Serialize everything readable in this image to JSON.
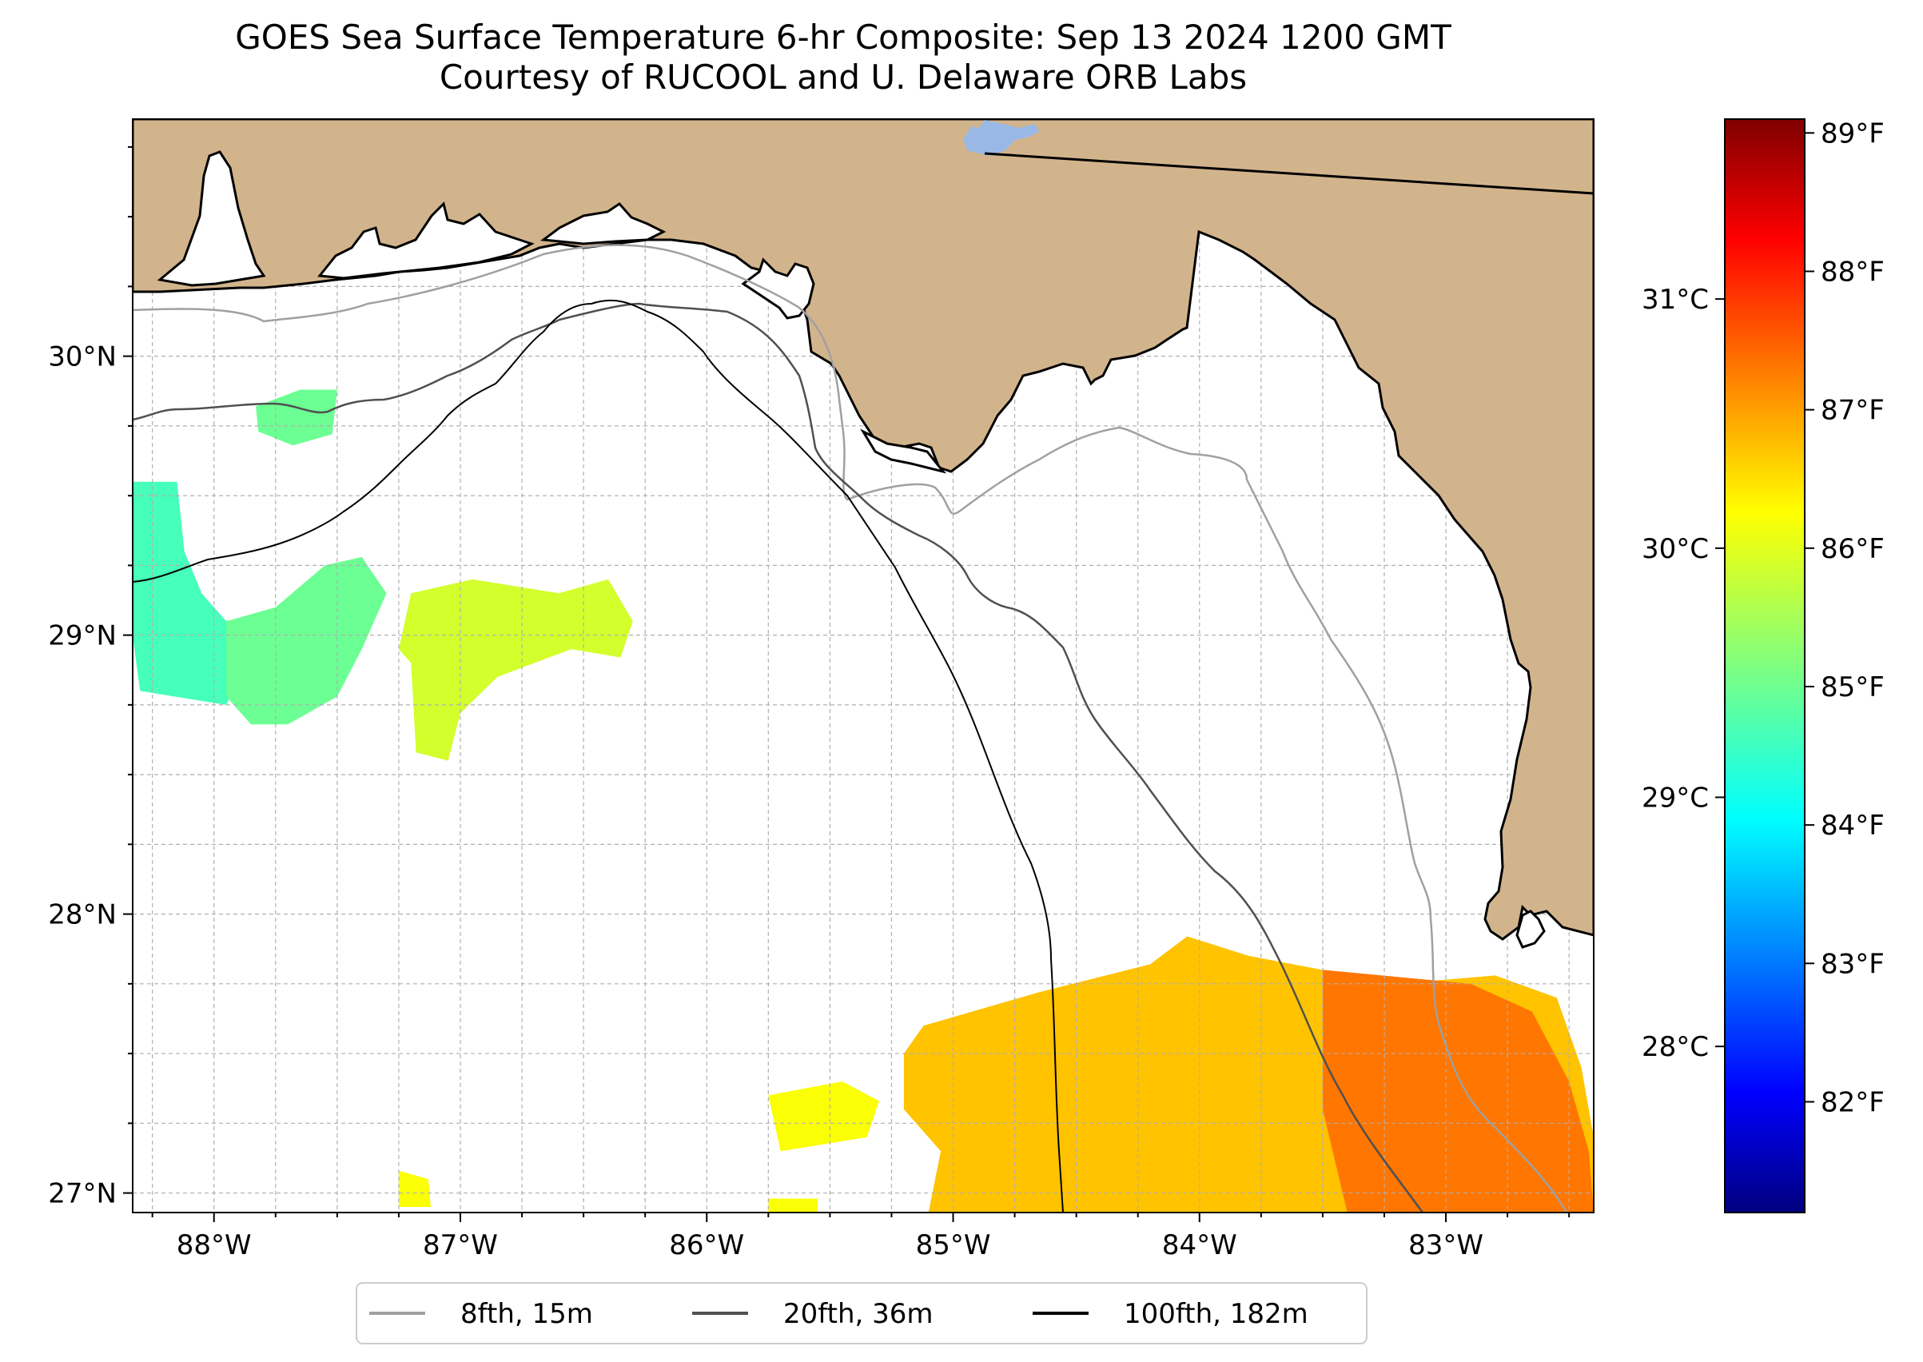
{
  "title": {
    "line1": "GOES Sea Surface Temperature 6-hr Composite: Sep 13 2024 1200 GMT",
    "line2": "Courtesy of RUCOOL and U. Delaware ORB Labs"
  },
  "map": {
    "lon_range": [
      -88.33,
      -82.4
    ],
    "lat_range": [
      26.93,
      30.85
    ],
    "lon_ticks": [
      {
        "value": -88,
        "label": "88°W"
      },
      {
        "value": -87,
        "label": "87°W"
      },
      {
        "value": -86,
        "label": "86°W"
      },
      {
        "value": -85,
        "label": "85°W"
      },
      {
        "value": -84,
        "label": "84°W"
      },
      {
        "value": -83,
        "label": "83°W"
      }
    ],
    "lat_ticks": [
      {
        "value": 30,
        "label": "30°N"
      },
      {
        "value": 29,
        "label": "29°N"
      },
      {
        "value": 28,
        "label": "28°N"
      },
      {
        "value": 27,
        "label": "27°N"
      }
    ],
    "gridlines": true,
    "colors": {
      "land": "#d2b48c",
      "ocean": "#ffffff",
      "coast": "#000000",
      "lake": "#9ab8e6"
    }
  },
  "colorbar": {
    "colormap": "jet",
    "f_range": [
      81.2,
      89.1
    ],
    "f_ticks": [
      {
        "value": 82,
        "label": "82°F"
      },
      {
        "value": 83,
        "label": "83°F"
      },
      {
        "value": 84,
        "label": "84°F"
      },
      {
        "value": 85,
        "label": "85°F"
      },
      {
        "value": 86,
        "label": "86°F"
      },
      {
        "value": 87,
        "label": "87°F"
      },
      {
        "value": 88,
        "label": "88°F"
      },
      {
        "value": 89,
        "label": "89°F"
      }
    ],
    "c_ticks": [
      {
        "value": 28,
        "label": "28°C"
      },
      {
        "value": 29,
        "label": "29°C"
      },
      {
        "value": 30,
        "label": "30°C"
      },
      {
        "value": 31,
        "label": "31°C"
      }
    ]
  },
  "sst_patches": [
    {
      "name": "patch-west-coast",
      "temp_f": 84.7,
      "points": [
        [
          -88.33,
          29.55
        ],
        [
          -88.15,
          29.55
        ],
        [
          -88.12,
          29.3
        ],
        [
          -88.05,
          29.15
        ],
        [
          -87.95,
          29.05
        ],
        [
          -87.9,
          28.85
        ],
        [
          -87.95,
          28.75
        ],
        [
          -88.3,
          28.8
        ],
        [
          -88.33,
          29.0
        ]
      ]
    },
    {
      "name": "patch-west-center",
      "temp_f": 85.0,
      "points": [
        [
          -87.95,
          29.05
        ],
        [
          -87.75,
          29.1
        ],
        [
          -87.55,
          29.25
        ],
        [
          -87.4,
          29.28
        ],
        [
          -87.3,
          29.15
        ],
        [
          -87.4,
          28.95
        ],
        [
          -87.5,
          28.78
        ],
        [
          -87.7,
          28.68
        ],
        [
          -87.85,
          28.68
        ],
        [
          -87.95,
          28.78
        ]
      ]
    },
    {
      "name": "patch-nearshore-west",
      "temp_f": 85.0,
      "points": [
        [
          -87.83,
          29.82
        ],
        [
          -87.65,
          29.88
        ],
        [
          -87.5,
          29.88
        ],
        [
          -87.52,
          29.72
        ],
        [
          -87.68,
          29.68
        ],
        [
          -87.82,
          29.73
        ]
      ]
    },
    {
      "name": "patch-mid-band",
      "temp_f": 85.8,
      "points": [
        [
          -87.2,
          29.15
        ],
        [
          -86.95,
          29.2
        ],
        [
          -86.6,
          29.15
        ],
        [
          -86.4,
          29.2
        ],
        [
          -86.3,
          29.05
        ],
        [
          -86.35,
          28.92
        ],
        [
          -86.55,
          28.95
        ],
        [
          -86.85,
          28.85
        ],
        [
          -87.0,
          28.72
        ],
        [
          -87.05,
          28.55
        ],
        [
          -87.18,
          28.58
        ],
        [
          -87.2,
          28.9
        ],
        [
          -87.25,
          28.95
        ]
      ]
    },
    {
      "name": "patch-south-small-1",
      "temp_f": 86.1,
      "points": [
        [
          -85.75,
          27.35
        ],
        [
          -85.45,
          27.4
        ],
        [
          -85.3,
          27.33
        ],
        [
          -85.35,
          27.2
        ],
        [
          -85.7,
          27.15
        ]
      ]
    },
    {
      "name": "patch-south-small-2",
      "temp_f": 86.1,
      "points": [
        [
          -87.25,
          27.08
        ],
        [
          -87.13,
          27.05
        ],
        [
          -87.12,
          26.95
        ],
        [
          -87.25,
          26.95
        ]
      ]
    },
    {
      "name": "patch-south-small-3",
      "temp_f": 86.1,
      "points": [
        [
          -85.75,
          26.98
        ],
        [
          -85.55,
          26.98
        ],
        [
          -85.55,
          26.93
        ],
        [
          -85.75,
          26.93
        ]
      ]
    },
    {
      "name": "patch-south-main",
      "temp_f": 86.6,
      "points": [
        [
          -85.12,
          27.6
        ],
        [
          -84.65,
          27.72
        ],
        [
          -84.2,
          27.82
        ],
        [
          -84.05,
          27.92
        ],
        [
          -83.8,
          27.85
        ],
        [
          -83.5,
          27.8
        ],
        [
          -83.2,
          27.75
        ],
        [
          -82.8,
          27.78
        ],
        [
          -82.55,
          27.7
        ],
        [
          -82.45,
          27.45
        ],
        [
          -82.4,
          27.2
        ],
        [
          -82.4,
          26.93
        ],
        [
          -85.1,
          26.93
        ],
        [
          -85.05,
          27.15
        ],
        [
          -85.2,
          27.3
        ],
        [
          -85.2,
          27.5
        ]
      ]
    },
    {
      "name": "patch-south-east-warm",
      "temp_f": 87.2,
      "points": [
        [
          -83.5,
          27.8
        ],
        [
          -82.9,
          27.75
        ],
        [
          -82.65,
          27.65
        ],
        [
          -82.5,
          27.4
        ],
        [
          -82.42,
          27.15
        ],
        [
          -82.4,
          26.93
        ],
        [
          -83.4,
          26.93
        ],
        [
          -83.5,
          27.3
        ]
      ]
    }
  ],
  "legend": {
    "items": [
      {
        "label": "8fth, 15m",
        "color": "#a0a0a0"
      },
      {
        "label": "20fth, 36m",
        "color": "#505050"
      },
      {
        "label": "100fth, 182m",
        "color": "#000000"
      }
    ]
  }
}
